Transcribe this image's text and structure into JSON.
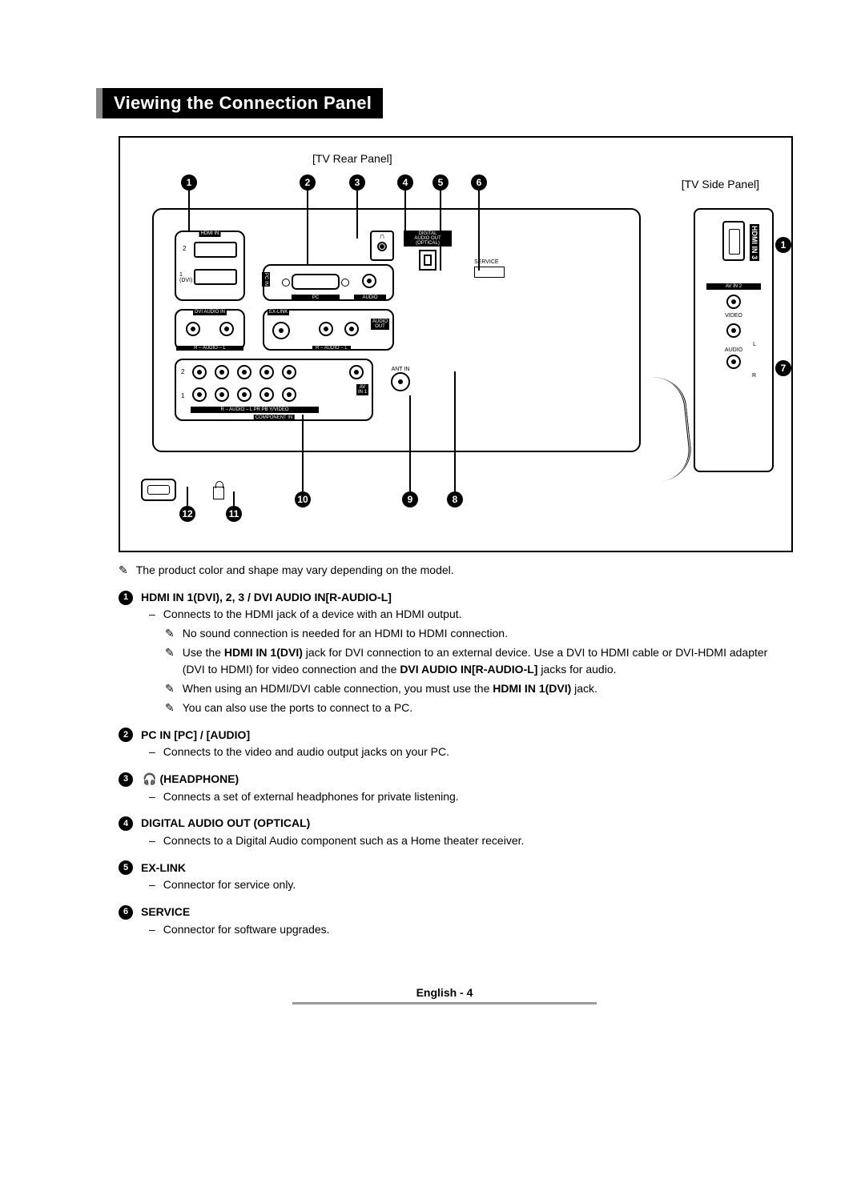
{
  "title": "Viewing the Connection Panel",
  "diagram": {
    "rear_label": "[TV Rear Panel]",
    "side_label": "[TV Side Panel]",
    "callouts_top": [
      "1",
      "2",
      "3",
      "4",
      "5",
      "6"
    ],
    "callouts_side": [
      "1",
      "7"
    ],
    "callouts_bottom": [
      "12",
      "11",
      "10",
      "9",
      "8"
    ],
    "port_labels": {
      "hdmi_in": "HDMI IN",
      "hdmi2": "2",
      "hdmi1": "1\n(DVI)",
      "dvi_audio": "DVI AUDIO IN",
      "rl": "R – AUDIO – L",
      "pc_in": "PC IN",
      "pc": "PC",
      "audio": "AUDIO",
      "exlink": "EX-LINK",
      "audio_out": "AUDIO\nOUT",
      "digital": "DIGITAL\nAUDIO OUT\n(OPTICAL)",
      "service": "SERVICE",
      "ant_in": "ANT IN",
      "av_in1": "AV\nIN 1",
      "component_in": "COMPONENT IN",
      "comp_row": "R – AUDIO – L    PR    PB    Y/VIDEO",
      "side_hdmi": "HDMI IN 3",
      "side_avin": "AV IN  2",
      "side_video": "VIDEO",
      "side_audio": "AUDIO",
      "side_l": "L",
      "side_r": "R"
    }
  },
  "disclaimer": "The product color and shape may vary depending on the model.",
  "items": [
    {
      "num": "1",
      "title": "HDMI IN 1(DVI), 2, 3 / DVI AUDIO IN[R-AUDIO-L]",
      "lines": [
        "Connects to the HDMI jack of a device with an HDMI output."
      ],
      "subnotes": [
        "No sound connection is needed for an HDMI to HDMI connection.",
        "Use the <b>HDMI IN 1(DVI)</b> jack for DVI connection to an external device. Use a DVI to HDMI cable or DVI-HDMI adapter (DVI to HDMI) for video connection and the <b>DVI AUDIO IN[R-AUDIO-L]</b> jacks for audio.",
        "When using an HDMI/DVI cable connection, you must use the <b>HDMI IN 1(DVI)</b> jack.",
        "You can also use the ports to connect to a PC."
      ]
    },
    {
      "num": "2",
      "title": "PC IN [PC] / [AUDIO]",
      "lines": [
        "Connects to the video and audio output jacks on your PC."
      ]
    },
    {
      "num": "3",
      "title_prefix_icon": "♫",
      "title": "(HEADPHONE)",
      "lines": [
        "Connects a set of external headphones for private listening."
      ]
    },
    {
      "num": "4",
      "title": "DIGITAL AUDIO OUT (OPTICAL)",
      "lines": [
        "Connects to a Digital Audio component such as a Home theater receiver."
      ]
    },
    {
      "num": "5",
      "title": "EX-LINK",
      "lines": [
        "Connector for service only."
      ]
    },
    {
      "num": "6",
      "title": "SERVICE",
      "lines": [
        "Connector for software upgrades."
      ]
    }
  ],
  "footer": "English - 4",
  "pencil_glyph": "✎",
  "headphone_glyph": "🎧",
  "colors": {
    "accent": "#888888",
    "title_bg": "#000000",
    "title_fg": "#ffffff"
  }
}
